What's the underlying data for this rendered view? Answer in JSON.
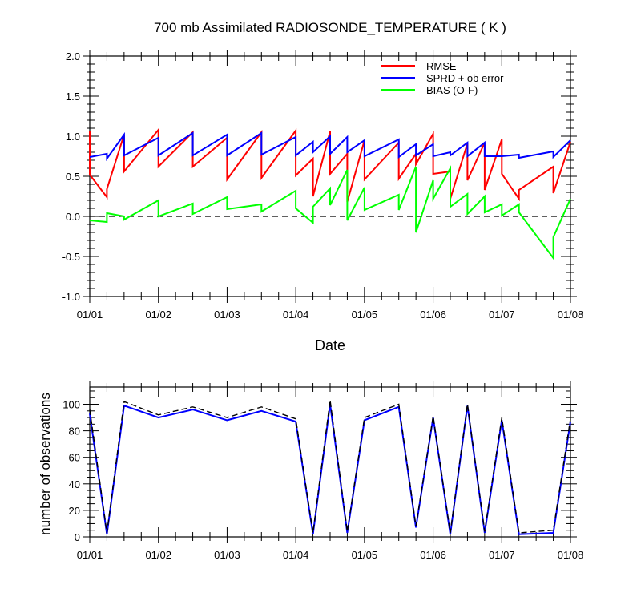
{
  "chart_data": [
    {
      "type": "line",
      "title": "700 mb Assimilated RADIOSONDE_TEMPERATURE ( K )",
      "xlabel": "Date",
      "ylabel": "",
      "xlim": [
        0,
        7
      ],
      "ylim": [
        -1.0,
        2.0
      ],
      "xtick_labels": [
        "01/01",
        "01/02",
        "01/03",
        "01/04",
        "01/05",
        "01/06",
        "01/07",
        "01/08"
      ],
      "ytick_labels": [
        "2.0",
        "1.5",
        "1.0",
        "0.5",
        "0.0",
        "-0.5",
        "-1.0"
      ],
      "reference_line": 0,
      "legend_position": "top-right",
      "series": [
        {
          "name": "RMSE",
          "color": "#ff0000",
          "points": [
            [
              0.0,
              1.06
            ],
            [
              0.0,
              0.52
            ],
            [
              0.25,
              0.24
            ],
            [
              0.25,
              0.34
            ],
            [
              0.5,
              1.02
            ],
            [
              0.5,
              0.56
            ],
            [
              1.0,
              1.08
            ],
            [
              1.0,
              0.62
            ],
            [
              1.5,
              1.05
            ],
            [
              1.5,
              0.62
            ],
            [
              2.0,
              0.98
            ],
            [
              2.0,
              0.46
            ],
            [
              2.5,
              1.05
            ],
            [
              2.5,
              0.48
            ],
            [
              3.0,
              1.07
            ],
            [
              3.0,
              0.51
            ],
            [
              3.25,
              0.72
            ],
            [
              3.25,
              0.25
            ],
            [
              3.5,
              1.06
            ],
            [
              3.5,
              0.53
            ],
            [
              3.75,
              0.78
            ],
            [
              3.75,
              0.18
            ],
            [
              4.0,
              0.95
            ],
            [
              4.0,
              0.46
            ],
            [
              4.5,
              0.92
            ],
            [
              4.5,
              0.47
            ],
            [
              4.75,
              0.78
            ],
            [
              4.75,
              0.65
            ],
            [
              5.0,
              1.03
            ],
            [
              5.0,
              0.53
            ],
            [
              5.25,
              0.56
            ],
            [
              5.25,
              0.22
            ],
            [
              5.5,
              0.91
            ],
            [
              5.5,
              0.45
            ],
            [
              5.75,
              0.92
            ],
            [
              5.75,
              0.33
            ],
            [
              6.0,
              0.96
            ],
            [
              6.0,
              0.53
            ],
            [
              6.25,
              0.22
            ],
            [
              6.25,
              0.33
            ],
            [
              6.75,
              0.62
            ],
            [
              6.75,
              0.29
            ],
            [
              7.0,
              0.93
            ]
          ]
        },
        {
          "name": "SPRD + ob error",
          "color": "#0000ff",
          "points": [
            [
              0.0,
              0.74
            ],
            [
              0.25,
              0.78
            ],
            [
              0.25,
              0.72
            ],
            [
              0.5,
              1.02
            ],
            [
              0.5,
              0.76
            ],
            [
              1.0,
              0.98
            ],
            [
              1.0,
              0.76
            ],
            [
              1.5,
              1.04
            ],
            [
              1.5,
              0.76
            ],
            [
              2.0,
              1.02
            ],
            [
              2.0,
              0.76
            ],
            [
              2.5,
              1.04
            ],
            [
              2.5,
              0.77
            ],
            [
              3.0,
              0.99
            ],
            [
              3.0,
              0.76
            ],
            [
              3.25,
              0.93
            ],
            [
              3.25,
              0.8
            ],
            [
              3.5,
              1.0
            ],
            [
              3.5,
              0.78
            ],
            [
              3.75,
              0.99
            ],
            [
              3.75,
              0.8
            ],
            [
              4.0,
              0.95
            ],
            [
              4.0,
              0.75
            ],
            [
              4.5,
              0.96
            ],
            [
              4.5,
              0.74
            ],
            [
              4.75,
              0.9
            ],
            [
              4.75,
              0.76
            ],
            [
              5.0,
              0.9
            ],
            [
              5.0,
              0.75
            ],
            [
              5.25,
              0.8
            ],
            [
              5.25,
              0.76
            ],
            [
              5.5,
              0.92
            ],
            [
              5.5,
              0.75
            ],
            [
              5.75,
              0.92
            ],
            [
              5.75,
              0.75
            ],
            [
              6.0,
              0.75
            ],
            [
              6.25,
              0.77
            ],
            [
              6.25,
              0.73
            ],
            [
              6.75,
              0.81
            ],
            [
              6.75,
              0.74
            ],
            [
              7.0,
              0.95
            ]
          ]
        },
        {
          "name": "BIAS (O-F)",
          "color": "#00ff00",
          "points": [
            [
              0.0,
              -0.05
            ],
            [
              0.25,
              -0.07
            ],
            [
              0.25,
              0.04
            ],
            [
              0.5,
              0.0
            ],
            [
              0.5,
              -0.04
            ],
            [
              1.0,
              0.2
            ],
            [
              1.0,
              0.0
            ],
            [
              1.5,
              0.16
            ],
            [
              1.5,
              0.03
            ],
            [
              2.0,
              0.24
            ],
            [
              2.0,
              0.09
            ],
            [
              2.5,
              0.15
            ],
            [
              2.5,
              0.06
            ],
            [
              3.0,
              0.32
            ],
            [
              3.0,
              0.1
            ],
            [
              3.25,
              -0.08
            ],
            [
              3.25,
              0.12
            ],
            [
              3.5,
              0.35
            ],
            [
              3.5,
              0.14
            ],
            [
              3.75,
              0.58
            ],
            [
              3.75,
              -0.05
            ],
            [
              4.0,
              0.36
            ],
            [
              4.0,
              0.08
            ],
            [
              4.5,
              0.27
            ],
            [
              4.5,
              0.08
            ],
            [
              4.75,
              0.62
            ],
            [
              4.75,
              -0.2
            ],
            [
              5.0,
              0.45
            ],
            [
              5.0,
              0.22
            ],
            [
              5.25,
              0.6
            ],
            [
              5.25,
              0.12
            ],
            [
              5.5,
              0.28
            ],
            [
              5.5,
              0.03
            ],
            [
              5.75,
              0.25
            ],
            [
              5.75,
              0.05
            ],
            [
              6.0,
              0.15
            ],
            [
              6.0,
              0.01
            ],
            [
              6.25,
              0.15
            ],
            [
              6.25,
              0.05
            ],
            [
              6.75,
              -0.52
            ],
            [
              6.75,
              -0.26
            ],
            [
              7.0,
              0.22
            ]
          ]
        }
      ]
    },
    {
      "type": "line",
      "title": "",
      "xlabel": "",
      "ylabel": "number of observations",
      "xlim": [
        0,
        7
      ],
      "ylim": [
        0,
        113
      ],
      "xtick_labels": [
        "01/01",
        "01/02",
        "01/03",
        "01/04",
        "01/05",
        "01/06",
        "01/07",
        "01/08"
      ],
      "ytick_labels": [
        "100",
        "80",
        "60",
        "40",
        "20",
        "0"
      ],
      "series": [
        {
          "style": "solid",
          "color": "#0000ff",
          "points": [
            [
              0.0,
              93
            ],
            [
              0.25,
              2
            ],
            [
              0.5,
              99
            ],
            [
              1.0,
              90
            ],
            [
              1.5,
              96
            ],
            [
              2.0,
              88
            ],
            [
              2.5,
              95
            ],
            [
              3.0,
              87
            ],
            [
              3.25,
              2
            ],
            [
              3.5,
              100
            ],
            [
              3.75,
              3
            ],
            [
              4.0,
              88
            ],
            [
              4.5,
              98
            ],
            [
              4.75,
              7
            ],
            [
              5.0,
              90
            ],
            [
              5.25,
              2
            ],
            [
              5.5,
              99
            ],
            [
              5.75,
              3
            ],
            [
              6.0,
              88
            ],
            [
              6.25,
              2
            ],
            [
              6.75,
              3
            ],
            [
              7.0,
              87
            ]
          ]
        },
        {
          "style": "dashed",
          "color": "#000000",
          "points": [
            [
              0.0,
              96
            ],
            [
              0.25,
              3
            ],
            [
              0.5,
              102
            ],
            [
              1.0,
              92
            ],
            [
              1.5,
              98
            ],
            [
              2.0,
              90
            ],
            [
              2.5,
              98
            ],
            [
              3.0,
              89
            ],
            [
              3.25,
              3
            ],
            [
              3.5,
              103
            ],
            [
              3.75,
              4
            ],
            [
              4.0,
              90
            ],
            [
              4.5,
              100
            ],
            [
              4.75,
              8
            ],
            [
              5.0,
              91
            ],
            [
              5.25,
              3
            ],
            [
              5.5,
              100
            ],
            [
              5.75,
              4
            ],
            [
              6.0,
              90
            ],
            [
              6.25,
              3
            ],
            [
              6.75,
              5
            ],
            [
              7.0,
              89
            ]
          ]
        }
      ]
    }
  ]
}
